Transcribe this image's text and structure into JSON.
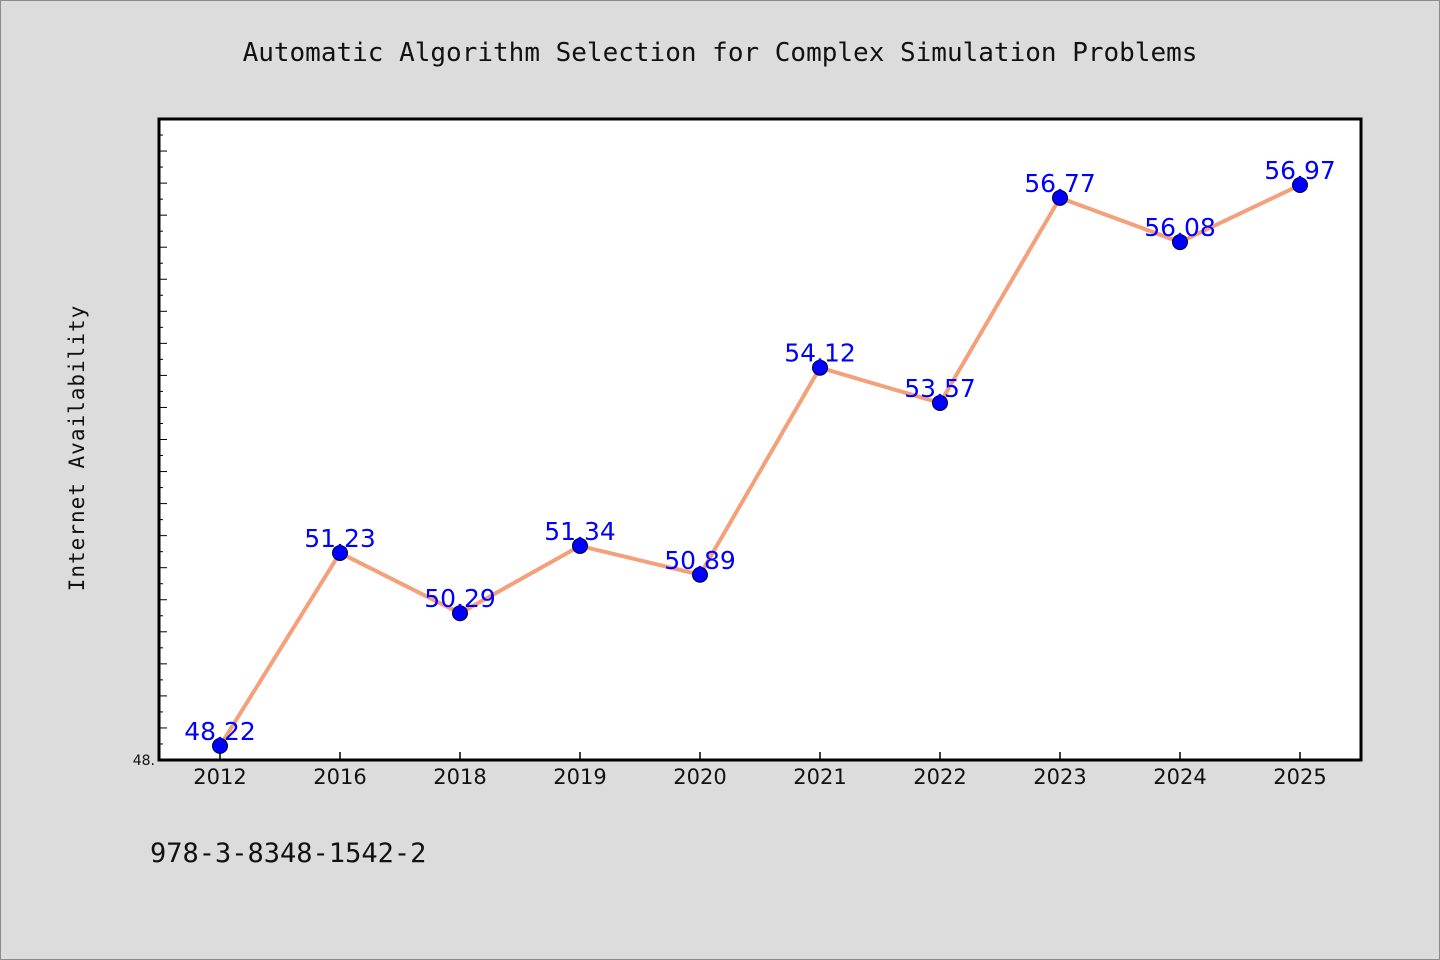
{
  "colors": {
    "background": "#dcdcdc",
    "plot_background": "#ffffff",
    "line": "#f4a07a",
    "marker": "#0000ff",
    "data_label": "#0000ff"
  },
  "footer": {
    "isbn": "978-3-8348-1542-2"
  },
  "chart_data": {
    "type": "line",
    "title": "Automatic Algorithm Selection for Complex Simulation Problems",
    "xlabel": "",
    "ylabel": "Internet Availability",
    "categories": [
      "2012",
      "2016",
      "2018",
      "2019",
      "2020",
      "2021",
      "2022",
      "2023",
      "2024",
      "2025"
    ],
    "series": [
      {
        "values": [
          48.22,
          51.23,
          50.29,
          51.34,
          50.89,
          54.12,
          53.57,
          56.77,
          56.08,
          56.97
        ],
        "labels": [
          "48.22",
          "51.23",
          "50.29",
          "51.34",
          "50.89",
          "54.12",
          "53.57",
          "56.77",
          "56.08",
          "56.97"
        ]
      }
    ],
    "ylim": [
      48.0,
      58.0
    ],
    "y_tick_labels": [
      "48."
    ],
    "grid": false,
    "legend": "none"
  }
}
